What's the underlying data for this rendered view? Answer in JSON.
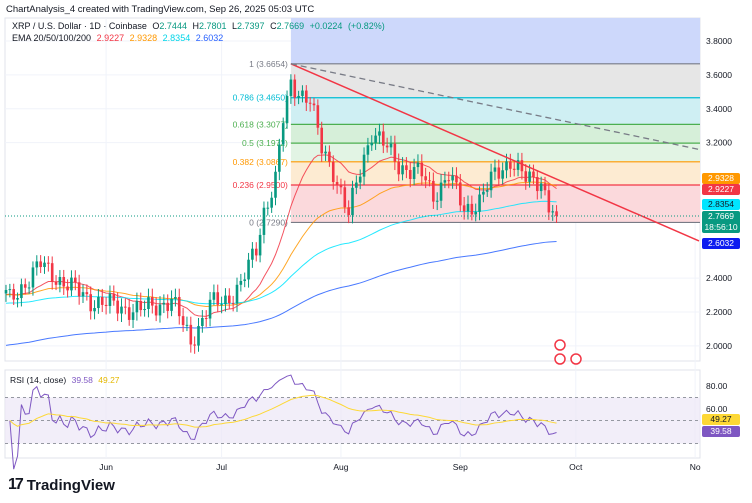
{
  "header": {
    "caption": "ChartAnalysis_4 created with TradingView.com, Sep 26, 2025 05:03 UTC"
  },
  "legend": {
    "symbol": "XRP / U.S. Dollar · 1D · Coinbase",
    "open_label": "O",
    "open": "2.7444",
    "high_label": "H",
    "high": "2.7801",
    "low_label": "L",
    "low": "2.7397",
    "close_label": "C",
    "close": "2.7669",
    "change": "+0.0224",
    "change_pct": "(+0.82%)",
    "ema_label": "EMA 20/50/100/200",
    "ema20": "2.9227",
    "ema50": "2.9328",
    "ema100": "2.8354",
    "ema200": "2.6032"
  },
  "badges": {
    "ema50": "2.9328",
    "ema20": "2.9227",
    "ema100": "2.8354",
    "price": "2.7669",
    "countdown": "18:56:10",
    "ema200": "2.6032",
    "rsi_ma": "49.27",
    "rsi": "39.58"
  },
  "colors": {
    "up": "#089981",
    "down": "#f23645",
    "ema20": "#f23645",
    "ema50": "#ff9800",
    "ema100": "#00e5ff",
    "ema200": "#2962ff",
    "rsi": "#7e57c2",
    "rsi_ma": "#fdd835"
  },
  "brand": "TradingView",
  "chart_data": {
    "type": "candlestick",
    "title": "XRP / U.S. Dollar · 1D · Coinbase",
    "price_ticks": [
      "3.8000",
      "3.6000",
      "3.4000",
      "3.2000",
      "2.4000",
      "2.2000",
      "2.0000"
    ],
    "price_tick_values": [
      3.8,
      3.6,
      3.4,
      3.2,
      2.4,
      2.2,
      2.0
    ],
    "ylim": [
      1.88,
      3.9
    ],
    "x_ticks": [
      "Jun",
      "Jul",
      "Aug",
      "Sep",
      "Oct",
      "No"
    ],
    "x_tick_days": [
      26,
      56,
      87,
      118,
      148,
      179
    ],
    "start_date": "May 6",
    "close_keypoints": [
      [
        0,
        2.3
      ],
      [
        1,
        2.27
      ],
      [
        9,
        2.48
      ],
      [
        14,
        2.39
      ],
      [
        22,
        2.27
      ],
      [
        27,
        2.24
      ],
      [
        35,
        2.21
      ],
      [
        43,
        2.27
      ],
      [
        48,
        2.03
      ],
      [
        53,
        2.24
      ],
      [
        57,
        2.27
      ],
      [
        61,
        2.36
      ],
      [
        65,
        2.57
      ],
      [
        67,
        2.8
      ],
      [
        70,
        2.98
      ],
      [
        72,
        3.33
      ],
      [
        74,
        3.54
      ],
      [
        76,
        3.51
      ],
      [
        79,
        3.45
      ],
      [
        82,
        3.16
      ],
      [
        85,
        3.04
      ],
      [
        89,
        2.77
      ],
      [
        92,
        3.04
      ],
      [
        95,
        3.27
      ],
      [
        98,
        3.19
      ],
      [
        102,
        3.07
      ],
      [
        108,
        3.01
      ],
      [
        111,
        2.89
      ],
      [
        115,
        3.01
      ],
      [
        119,
        2.8
      ],
      [
        123,
        2.86
      ],
      [
        127,
        3.01
      ],
      [
        131,
        3.1
      ],
      [
        135,
        2.98
      ],
      [
        139,
        2.98
      ],
      [
        141,
        2.83
      ],
      [
        143,
        2.7669
      ]
    ],
    "fib_levels": [
      {
        "label": "1 (3.6654)",
        "value": 3.6654,
        "color": "#787b86"
      },
      {
        "label": "0.786 (3.4650)",
        "value": 3.465,
        "color": "#00bcd4"
      },
      {
        "label": "0.618 (3.3077)",
        "value": 3.3077,
        "color": "#4caf50"
      },
      {
        "label": "0.5 (3.1972)",
        "value": 3.1972,
        "color": "#4caf50"
      },
      {
        "label": "0.382 (3.0867)",
        "value": 3.0867,
        "color": "#ff9800"
      },
      {
        "label": "0.236 (2.9500)",
        "value": 2.95,
        "color": "#f23645"
      },
      {
        "label": "0 (2.7290)",
        "value": 2.729,
        "color": "#787b86"
      }
    ],
    "fib_start_day": 74,
    "trendline": {
      "from": [
        74,
        3.6654
      ],
      "to": [
        180,
        2.62
      ]
    },
    "dashed_line": {
      "from": [
        74,
        3.6654
      ],
      "to": [
        180,
        3.16
      ]
    },
    "rsi": {
      "label": "RSI (14, close)",
      "value": 39.58,
      "ma": 49.27,
      "ticks": [
        "80.00",
        "60.00"
      ],
      "tick_values": [
        80,
        60
      ],
      "bands": [
        70,
        50,
        30
      ]
    }
  }
}
